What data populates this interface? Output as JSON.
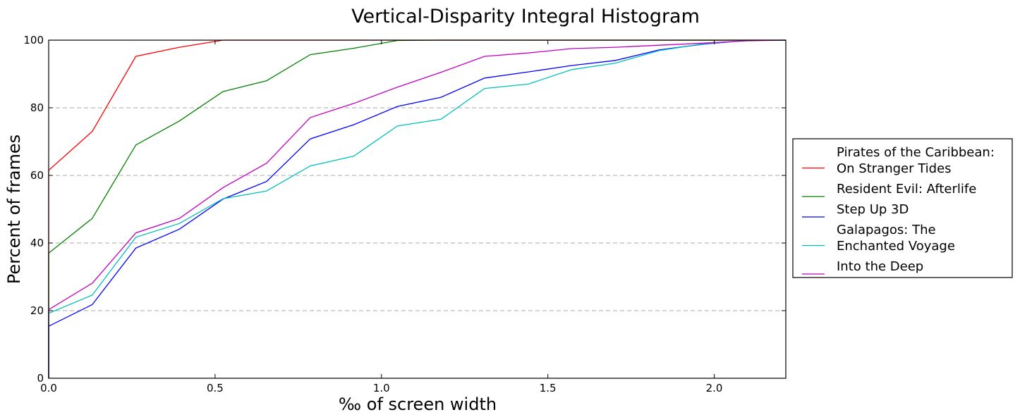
{
  "chart_data": {
    "type": "line",
    "title": "Vertical-Disparity Integral Histogram",
    "xlabel": "‰ of screen width",
    "ylabel": "Percent of frames",
    "xlim": [
      0.0,
      2.215
    ],
    "ylim": [
      0,
      100
    ],
    "xticks": [
      0.0,
      0.5,
      1.0,
      1.5,
      2.0
    ],
    "xtick_labels": [
      "0.0",
      "0.5",
      "1.0",
      "1.5",
      "2.0"
    ],
    "yticks": [
      0,
      20,
      40,
      60,
      80,
      100
    ],
    "ytick_labels": [
      "0",
      "20",
      "40",
      "60",
      "80",
      "100"
    ],
    "grid": "horizontal dashed",
    "legend_position": "right, outside",
    "series": [
      {
        "name": "Pirates of the Caribbean:\nOn Stranger Tides",
        "color": "#ff0000",
        "x": [
          0.0,
          0.0,
          0.131,
          0.262,
          0.393,
          0.524,
          0.655,
          0.786,
          0.917,
          1.048,
          1.179,
          1.31,
          1.441,
          1.572,
          1.703,
          1.834,
          1.965,
          2.096,
          2.215
        ],
        "y": [
          0,
          61.5,
          73,
          95.2,
          97.9,
          100,
          100,
          100,
          100,
          100,
          100,
          100,
          100,
          100,
          100,
          100,
          100,
          100,
          100
        ]
      },
      {
        "name": "Resident Evil: Afterlife",
        "color": "#008000",
        "x": [
          0.0,
          0.0,
          0.131,
          0.262,
          0.393,
          0.524,
          0.655,
          0.786,
          0.917,
          1.048,
          1.179,
          1.31,
          1.441,
          1.572,
          1.703,
          1.834,
          1.965,
          2.096,
          2.215
        ],
        "y": [
          0,
          37,
          47.3,
          69,
          76.1,
          84.8,
          88,
          95.7,
          97.6,
          99.9,
          100,
          100,
          100,
          100,
          100,
          100,
          100,
          100,
          100
        ]
      },
      {
        "name": "Step Up 3D",
        "color": "#0000ff",
        "x": [
          0.0,
          0.0,
          0.131,
          0.262,
          0.393,
          0.524,
          0.655,
          0.786,
          0.917,
          1.048,
          1.179,
          1.31,
          1.441,
          1.572,
          1.703,
          1.834,
          1.965,
          2.096,
          2.215
        ],
        "y": [
          0,
          15.4,
          21.8,
          38.5,
          44.1,
          53,
          58.2,
          70.8,
          75,
          80.4,
          83.1,
          88.8,
          90.6,
          92.5,
          94,
          97.1,
          98.8,
          99.9,
          100
        ]
      },
      {
        "name": "Galapagos: The\nEnchanted Voyage",
        "color": "#00bfbf",
        "x": [
          0.0,
          0.0,
          0.131,
          0.262,
          0.393,
          0.524,
          0.655,
          0.786,
          0.917,
          1.048,
          1.179,
          1.31,
          1.441,
          1.572,
          1.703,
          1.834,
          1.965,
          2.096,
          2.215
        ],
        "y": [
          0,
          19.2,
          24.6,
          41.7,
          45.8,
          53.1,
          55.4,
          62.8,
          65.7,
          74.6,
          76.6,
          85.7,
          87,
          91.3,
          93.2,
          96.9,
          98.9,
          99.9,
          100
        ]
      },
      {
        "name": "Into the Deep",
        "color": "#bf00bf",
        "x": [
          0.0,
          0.0,
          0.131,
          0.262,
          0.393,
          0.524,
          0.655,
          0.786,
          0.917,
          1.048,
          1.179,
          1.31,
          1.441,
          1.572,
          1.703,
          1.834,
          1.965,
          2.096,
          2.215
        ],
        "y": [
          0,
          20.3,
          28.1,
          43,
          47.3,
          56.4,
          63.6,
          77.1,
          81.3,
          86.1,
          90.5,
          95.2,
          96.2,
          97.5,
          97.9,
          98.5,
          99.1,
          99.8,
          100
        ]
      }
    ]
  }
}
